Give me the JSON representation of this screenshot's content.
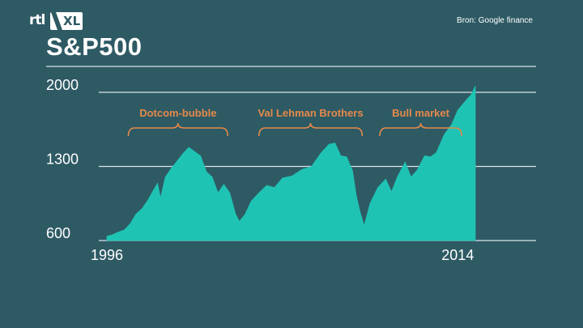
{
  "channel_logo": {
    "name": "rtl-xl-logo",
    "text_rtl": "rtl",
    "text_xl": "XL"
  },
  "source": "Bron: Google finance",
  "colors": {
    "background": "#2e5a64",
    "area_fill": "#1fc3b3",
    "gridline": "#d9e4e6",
    "annotation": "#e5894a",
    "text": "#ffffff"
  },
  "chart_data": {
    "type": "area",
    "title": "S&P500",
    "xlabel": "",
    "ylabel": "",
    "ylim": [
      600,
      2000
    ],
    "yticks": [
      {
        "value": 2000,
        "label": "2000"
      },
      {
        "value": 1300,
        "label": "1300"
      },
      {
        "value": 600,
        "label": "600"
      }
    ],
    "xticks": [
      {
        "value": 1996,
        "label": "1996"
      },
      {
        "value": 2014,
        "label": "2014"
      }
    ],
    "grid": true,
    "series": [
      {
        "points": [
          [
            1996.0,
            640
          ],
          [
            1996.3,
            655
          ],
          [
            1996.6,
            680
          ],
          [
            1996.9,
            700
          ],
          [
            1997.2,
            760
          ],
          [
            1997.5,
            850
          ],
          [
            1997.8,
            900
          ],
          [
            1998.1,
            980
          ],
          [
            1998.4,
            1080
          ],
          [
            1998.6,
            1140
          ],
          [
            1998.75,
            1000
          ],
          [
            1999.0,
            1200
          ],
          [
            1999.3,
            1280
          ],
          [
            1999.6,
            1350
          ],
          [
            1999.9,
            1420
          ],
          [
            2000.2,
            1480
          ],
          [
            2000.5,
            1440
          ],
          [
            2000.8,
            1400
          ],
          [
            2001.1,
            1250
          ],
          [
            2001.4,
            1200
          ],
          [
            2001.7,
            1050
          ],
          [
            2002.0,
            1130
          ],
          [
            2002.3,
            1050
          ],
          [
            2002.6,
            850
          ],
          [
            2002.8,
            780
          ],
          [
            2003.1,
            850
          ],
          [
            2003.4,
            970
          ],
          [
            2003.8,
            1050
          ],
          [
            2004.2,
            1120
          ],
          [
            2004.6,
            1100
          ],
          [
            2005.0,
            1190
          ],
          [
            2005.5,
            1210
          ],
          [
            2006.0,
            1270
          ],
          [
            2006.5,
            1300
          ],
          [
            2007.0,
            1430
          ],
          [
            2007.4,
            1510
          ],
          [
            2007.7,
            1520
          ],
          [
            2008.0,
            1400
          ],
          [
            2008.3,
            1390
          ],
          [
            2008.6,
            1260
          ],
          [
            2008.8,
            1020
          ],
          [
            2009.0,
            860
          ],
          [
            2009.2,
            740
          ],
          [
            2009.5,
            950
          ],
          [
            2009.9,
            1100
          ],
          [
            2010.3,
            1180
          ],
          [
            2010.6,
            1060
          ],
          [
            2010.9,
            1200
          ],
          [
            2011.3,
            1340
          ],
          [
            2011.6,
            1200
          ],
          [
            2011.9,
            1260
          ],
          [
            2012.3,
            1400
          ],
          [
            2012.6,
            1390
          ],
          [
            2012.9,
            1430
          ],
          [
            2013.3,
            1600
          ],
          [
            2013.7,
            1700
          ],
          [
            2014.0,
            1830
          ],
          [
            2014.4,
            1920
          ],
          [
            2014.7,
            1980
          ],
          [
            2014.9,
            2060
          ]
        ]
      }
    ],
    "annotations": [
      {
        "text": "Dotcom-bubble",
        "x_start": 1997.1,
        "x_end": 2002.2
      },
      {
        "text": "Val Lehman Brothers",
        "x_start": 2003.8,
        "x_end": 2009.1
      },
      {
        "text": "Bull market",
        "x_start": 2010.0,
        "x_end": 2014.2
      }
    ]
  }
}
